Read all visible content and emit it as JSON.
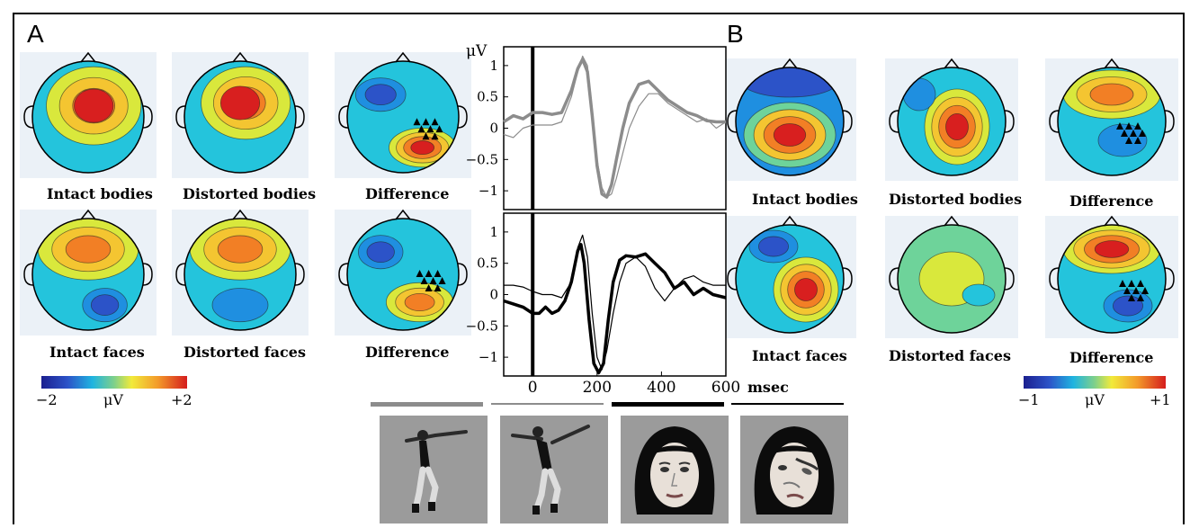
{
  "panels": {
    "a": "A",
    "b": "B"
  },
  "panel_a": {
    "maps": [
      {
        "label": "Intact bodies"
      },
      {
        "label": "Distorted bodies"
      },
      {
        "label": "Difference"
      },
      {
        "label": "Intact faces"
      },
      {
        "label": "Distorted faces"
      },
      {
        "label": "Difference"
      }
    ],
    "scale": {
      "min": "−2",
      "unit": "μV",
      "max": "+2"
    }
  },
  "panel_b": {
    "maps": [
      {
        "label": "Intact bodies"
      },
      {
        "label": "Distorted bodies"
      },
      {
        "label": "Difference"
      },
      {
        "label": "Intact faces"
      },
      {
        "label": "Distorted faces"
      },
      {
        "label": "Difference"
      }
    ],
    "scale": {
      "min": "−1",
      "unit": "μV",
      "max": "+1"
    }
  },
  "chart_data": [
    {
      "type": "line",
      "ylabel": "μV",
      "xlim": [
        -90,
        600
      ],
      "ylim": [
        -1.3,
        1.3
      ],
      "yticks": [
        "1",
        "0.5",
        "0",
        "−0.5",
        "−1"
      ],
      "series": [
        {
          "style": "thick gray (intact bodies)",
          "color": "#8c8c8c",
          "x": [
            -90,
            -60,
            -30,
            0,
            30,
            60,
            90,
            120,
            140,
            155,
            170,
            185,
            200,
            215,
            230,
            245,
            260,
            280,
            300,
            330,
            360,
            390,
            420,
            450,
            480,
            510,
            540,
            570,
            600
          ],
          "y": [
            0.1,
            0.2,
            0.15,
            0.25,
            0.25,
            0.22,
            0.25,
            0.6,
            0.95,
            1.1,
            0.9,
            0.2,
            -0.6,
            -1.05,
            -1.1,
            -0.9,
            -0.5,
            0.0,
            0.4,
            0.7,
            0.75,
            0.6,
            0.45,
            0.35,
            0.25,
            0.2,
            0.12,
            0.1,
            0.1
          ]
        },
        {
          "style": "thin gray (distorted bodies)",
          "color": "#8c8c8c",
          "x": [
            -90,
            -60,
            -30,
            0,
            30,
            60,
            90,
            120,
            140,
            155,
            170,
            185,
            200,
            215,
            230,
            245,
            260,
            280,
            300,
            330,
            360,
            390,
            420,
            450,
            480,
            510,
            540,
            570,
            600
          ],
          "y": [
            -0.1,
            -0.15,
            0.0,
            0.05,
            0.05,
            0.05,
            0.1,
            0.5,
            0.9,
            1.15,
            1.0,
            0.3,
            -0.5,
            -0.95,
            -1.1,
            -1.05,
            -0.8,
            -0.4,
            0.0,
            0.35,
            0.55,
            0.55,
            0.4,
            0.3,
            0.2,
            0.1,
            0.15,
            0.0,
            0.1
          ]
        }
      ],
      "xticks": []
    },
    {
      "type": "line",
      "xlim": [
        -90,
        600
      ],
      "ylim": [
        -1.3,
        1.3
      ],
      "yticks": [
        "1",
        "0.5",
        "0",
        "−0.5",
        "−1"
      ],
      "xticks": [
        "0",
        "200",
        "400",
        "600"
      ],
      "xunit": "msec",
      "series": [
        {
          "style": "thick black (intact faces)",
          "color": "#000000",
          "x": [
            -90,
            -60,
            -30,
            0,
            20,
            40,
            60,
            80,
            100,
            120,
            140,
            150,
            160,
            175,
            190,
            205,
            220,
            235,
            250,
            270,
            290,
            320,
            350,
            380,
            410,
            440,
            470,
            500,
            530,
            560,
            600
          ],
          "y": [
            -0.1,
            -0.15,
            -0.2,
            -0.3,
            -0.3,
            -0.2,
            -0.3,
            -0.25,
            -0.1,
            0.2,
            0.7,
            0.8,
            0.5,
            -0.4,
            -1.1,
            -1.25,
            -1.1,
            -0.4,
            0.2,
            0.55,
            0.62,
            0.6,
            0.65,
            0.5,
            0.35,
            0.1,
            0.2,
            0.0,
            0.1,
            0.0,
            -0.05
          ]
        },
        {
          "style": "thin black (distorted faces)",
          "color": "#000000",
          "x": [
            -90,
            -60,
            -30,
            0,
            30,
            60,
            90,
            120,
            140,
            155,
            170,
            185,
            200,
            215,
            230,
            250,
            270,
            290,
            320,
            350,
            380,
            410,
            440,
            470,
            500,
            530,
            560,
            600
          ],
          "y": [
            0.15,
            0.15,
            0.12,
            0.05,
            0.0,
            0.0,
            -0.05,
            0.2,
            0.75,
            0.95,
            0.6,
            -0.3,
            -1.0,
            -1.2,
            -0.9,
            -0.3,
            0.2,
            0.5,
            0.6,
            0.45,
            0.1,
            -0.1,
            0.1,
            0.25,
            0.3,
            0.2,
            0.15,
            0.15
          ]
        }
      ]
    }
  ]
}
